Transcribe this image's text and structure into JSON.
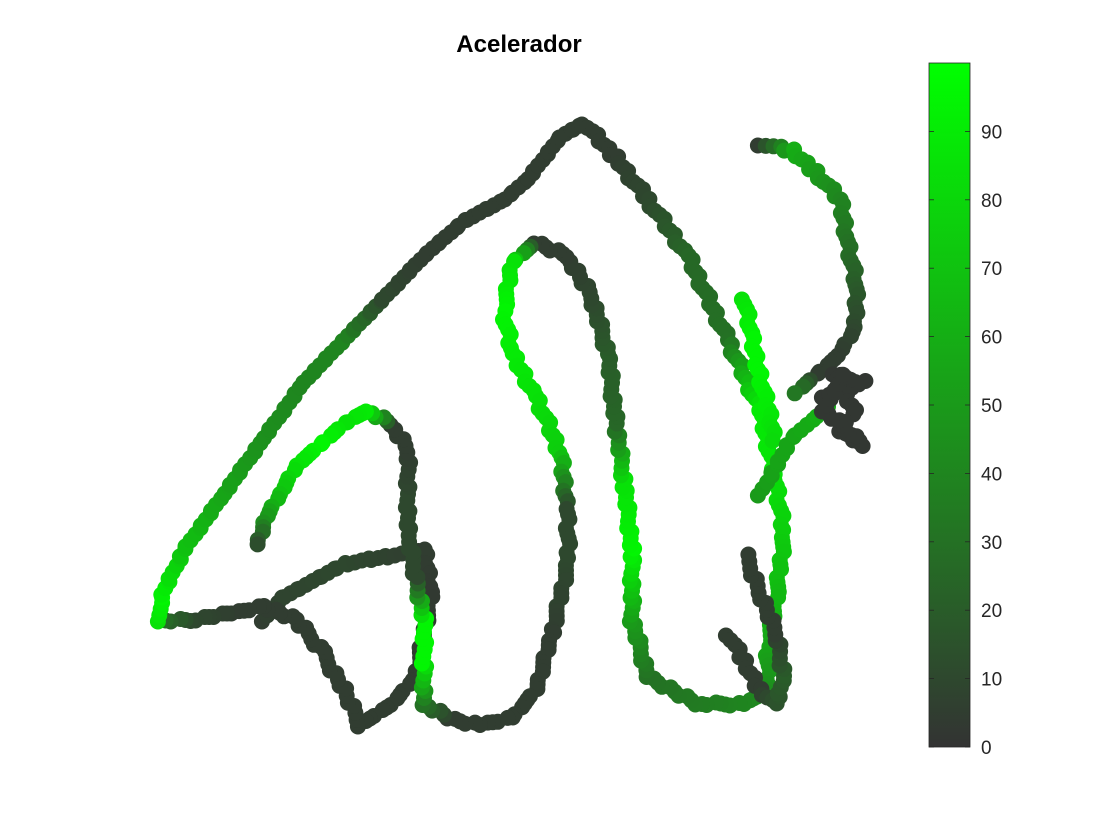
{
  "chart_data": {
    "type": "scatter",
    "title": "Acelerador",
    "xlabel": "",
    "ylabel": "",
    "axes_visible": false,
    "grid": false,
    "legend": "none",
    "colorbar": {
      "position": "right",
      "range": [
        0,
        100
      ],
      "ticks": [
        0,
        10,
        20,
        30,
        40,
        50,
        60,
        70,
        80,
        90
      ],
      "tick_labels": [
        "0",
        "10",
        "20",
        "30",
        "40",
        "50",
        "60",
        "70",
        "80",
        "90"
      ],
      "colors": {
        "low": "#333333",
        "mid": "#1a9a1a",
        "high": "#00ff00"
      }
    },
    "xlim": [
      0,
      100
    ],
    "ylim": [
      0,
      100
    ],
    "track_segments": [
      {
        "points": [
          [
            18,
            20
          ],
          [
            20,
            23
          ],
          [
            28,
            28
          ],
          [
            38,
            30
          ],
          [
            39,
            24
          ],
          [
            37,
            12
          ],
          [
            34,
            8
          ],
          [
            30,
            5
          ],
          [
            28,
            10
          ],
          [
            25,
            16
          ],
          [
            22,
            20
          ],
          [
            18,
            22
          ],
          [
            14,
            21
          ],
          [
            9,
            20
          ],
          [
            5,
            20
          ]
        ],
        "values": [
          5,
          8,
          10,
          5,
          3,
          5,
          5,
          5,
          5,
          5,
          5,
          5,
          5,
          10,
          30
        ]
      },
      {
        "points": [
          [
            5,
            20
          ],
          [
            5,
            23
          ],
          [
            8,
            30
          ],
          [
            13,
            38
          ],
          [
            18,
            46
          ],
          [
            23,
            54
          ],
          [
            28,
            60
          ],
          [
            33,
            66
          ],
          [
            38,
            72
          ],
          [
            43,
            77
          ],
          [
            48,
            80
          ],
          [
            51,
            83
          ],
          [
            55,
            89
          ],
          [
            58,
            91
          ]
        ],
        "values": [
          85,
          95,
          70,
          55,
          45,
          40,
          40,
          10,
          5,
          5,
          5,
          5,
          5,
          5
        ]
      },
      {
        "points": [
          [
            58,
            91
          ],
          [
            62,
            86
          ],
          [
            66,
            80
          ],
          [
            71,
            72
          ],
          [
            76,
            60
          ],
          [
            80,
            50
          ],
          [
            82,
            40
          ],
          [
            83,
            32
          ],
          [
            82,
            23
          ],
          [
            81,
            16
          ],
          [
            81,
            10
          ],
          [
            78,
            8
          ],
          [
            72,
            8
          ],
          [
            66,
            12
          ],
          [
            64,
            20
          ],
          [
            64,
            30
          ],
          [
            63,
            40
          ],
          [
            62,
            48
          ],
          [
            61,
            58
          ],
          [
            59,
            66
          ],
          [
            56,
            72
          ],
          [
            52,
            74
          ]
        ],
        "values": [
          5,
          5,
          10,
          25,
          30,
          90,
          85,
          75,
          65,
          55,
          45,
          40,
          35,
          30,
          50,
          95,
          85,
          25,
          20,
          10,
          5,
          5
        ]
      },
      {
        "points": [
          [
            52,
            74
          ],
          [
            49,
            71
          ],
          [
            48,
            64
          ],
          [
            49,
            58
          ],
          [
            52,
            52
          ],
          [
            55,
            44
          ],
          [
            56,
            36
          ],
          [
            56,
            28
          ],
          [
            54,
            18
          ],
          [
            52,
            10
          ],
          [
            49,
            6
          ],
          [
            45,
            5
          ],
          [
            41,
            6
          ],
          [
            38,
            8
          ],
          [
            38,
            14
          ]
        ],
        "values": [
          5,
          85,
          95,
          90,
          85,
          75,
          10,
          10,
          5,
          5,
          5,
          5,
          5,
          30,
          90
        ]
      },
      {
        "points": [
          [
            38,
            14
          ],
          [
            38,
            20
          ],
          [
            37,
            26
          ],
          [
            36,
            32
          ],
          [
            36,
            38
          ],
          [
            36,
            44
          ],
          [
            34,
            48
          ],
          [
            31,
            50
          ],
          [
            28,
            48
          ],
          [
            25,
            45
          ],
          [
            22,
            42
          ],
          [
            20,
            38
          ],
          [
            18,
            34
          ],
          [
            17,
            30
          ]
        ],
        "values": [
          95,
          95,
          10,
          10,
          10,
          5,
          5,
          90,
          85,
          95,
          85,
          70,
          45,
          5
        ]
      },
      {
        "points": [
          [
            80,
            88
          ],
          [
            84,
            87
          ],
          [
            87,
            84
          ],
          [
            90,
            80
          ],
          [
            91,
            74
          ],
          [
            92,
            68
          ],
          [
            92,
            62
          ],
          [
            90,
            58
          ],
          [
            87,
            55
          ],
          [
            84,
            52
          ]
        ],
        "values": [
          5,
          60,
          50,
          40,
          30,
          20,
          10,
          5,
          5,
          40
        ]
      },
      {
        "points": [
          [
            78,
            66
          ],
          [
            79,
            60
          ],
          [
            80,
            55
          ],
          [
            81,
            50
          ],
          [
            82,
            45
          ]
        ],
        "values": [
          85,
          95,
          95,
          90,
          80
        ]
      },
      {
        "points": [
          [
            80,
            38
          ],
          [
            82,
            42
          ],
          [
            84,
            46
          ],
          [
            87,
            49
          ],
          [
            89,
            51
          ]
        ],
        "values": [
          50,
          55,
          55,
          60,
          60
        ]
      },
      {
        "points": [
          [
            88,
            52
          ],
          [
            91,
            53
          ],
          [
            93,
            54
          ],
          [
            89,
            55
          ],
          [
            92,
            50
          ],
          [
            90,
            47
          ],
          [
            93,
            45
          ],
          [
            88,
            50
          ],
          [
            91,
            56
          ]
        ],
        "values": [
          2,
          2,
          2,
          2,
          2,
          2,
          2,
          2,
          2
        ]
      },
      {
        "points": [
          [
            76,
            18
          ],
          [
            78,
            14
          ],
          [
            80,
            10
          ],
          [
            82,
            8
          ],
          [
            83,
            12
          ],
          [
            82,
            18
          ],
          [
            80,
            24
          ],
          [
            78,
            30
          ]
        ],
        "values": [
          5,
          5,
          5,
          15,
          20,
          5,
          5,
          5
        ]
      }
    ]
  }
}
